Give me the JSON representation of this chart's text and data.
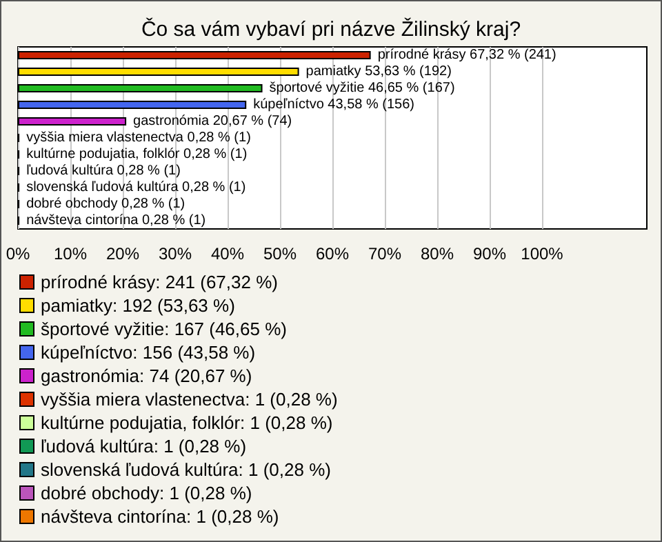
{
  "chart_data": {
    "type": "bar",
    "orientation": "horizontal",
    "stacked": true,
    "title": "Čo sa vám vybaví pri názve Žilinský kraj?",
    "categories": [
      null,
      null,
      null,
      null,
      null,
      null,
      null,
      null,
      null,
      null,
      null
    ],
    "xlim": [
      0,
      120
    ],
    "xticks": [
      {
        "value": 0,
        "label": "0%"
      },
      {
        "value": 10,
        "label": "10%"
      },
      {
        "value": 20,
        "label": "20%"
      },
      {
        "value": 30,
        "label": "30%"
      },
      {
        "value": 40,
        "label": "40%"
      },
      {
        "value": 50,
        "label": "50%"
      },
      {
        "value": 60,
        "label": "60%"
      },
      {
        "value": 70,
        "label": "70%"
      },
      {
        "value": 80,
        "label": "80%"
      },
      {
        "value": 90,
        "label": "90%"
      },
      {
        "value": 100,
        "label": "100%"
      }
    ],
    "tick_labels": "x",
    "grid": "x",
    "legend": "bottom left",
    "series": [
      {
        "name": "prírodné krásy: 241 (67,32 %)",
        "color": "#cc2200",
        "values": [
          67.32,
          null,
          null,
          null,
          null,
          null,
          null,
          null,
          null,
          null,
          null
        ],
        "value_labels": [
          "prírodné krásy 67,32 % (241)",
          null,
          null,
          null,
          null,
          null,
          null,
          null,
          null,
          null,
          null
        ]
      },
      {
        "name": "pamiatky: 192 (53,63 %)",
        "color": "#ffdd00",
        "values": [
          null,
          53.63,
          null,
          null,
          null,
          null,
          null,
          null,
          null,
          null,
          null
        ],
        "value_labels": [
          null,
          "pamiatky 53,63 % (192)",
          null,
          null,
          null,
          null,
          null,
          null,
          null,
          null,
          null
        ]
      },
      {
        "name": "športové vyžitie: 167 (46,65 %)",
        "color": "#22bb22",
        "values": [
          null,
          null,
          46.65,
          null,
          null,
          null,
          null,
          null,
          null,
          null,
          null
        ],
        "value_labels": [
          null,
          null,
          "športové vyžitie 46,65 % (167)",
          null,
          null,
          null,
          null,
          null,
          null,
          null,
          null
        ]
      },
      {
        "name": "kúpeľníctvo: 156 (43,58 %)",
        "color": "#4466ee",
        "values": [
          null,
          null,
          null,
          43.58,
          null,
          null,
          null,
          null,
          null,
          null,
          null
        ],
        "value_labels": [
          null,
          null,
          null,
          "kúpeľníctvo 43,58 % (156)",
          null,
          null,
          null,
          null,
          null,
          null,
          null
        ]
      },
      {
        "name": "gastronómia: 74 (20,67 %)",
        "color": "#cc22cc",
        "values": [
          null,
          null,
          null,
          null,
          20.67,
          null,
          null,
          null,
          null,
          null,
          null
        ],
        "value_labels": [
          null,
          null,
          null,
          null,
          "gastronómia 20,67 % (74)",
          null,
          null,
          null,
          null,
          null,
          null
        ]
      },
      {
        "name": "vyššia miera vlastenectva: 1 (0,28 %)",
        "color": "#dd3300",
        "values": [
          null,
          null,
          null,
          null,
          null,
          0.28,
          null,
          null,
          null,
          null,
          null
        ],
        "value_labels": [
          null,
          null,
          null,
          null,
          null,
          "vyššia miera vlastenectva 0,28 % (1)",
          null,
          null,
          null,
          null,
          null
        ]
      },
      {
        "name": "kultúrne podujatia, folklór: 1 (0,28 %)",
        "color": "#ccff99",
        "values": [
          null,
          null,
          null,
          null,
          null,
          null,
          0.28,
          null,
          null,
          null,
          null
        ],
        "value_labels": [
          null,
          null,
          null,
          null,
          null,
          null,
          "kultúrne podujatia, folklór 0,28 % (1)",
          null,
          null,
          null,
          null
        ]
      },
      {
        "name": "ľudová kultúra: 1 (0,28 %)",
        "color": "#119955",
        "values": [
          null,
          null,
          null,
          null,
          null,
          null,
          null,
          0.28,
          null,
          null,
          null
        ],
        "value_labels": [
          null,
          null,
          null,
          null,
          null,
          null,
          null,
          "ľudová kultúra 0,28 % (1)",
          null,
          null,
          null
        ]
      },
      {
        "name": "slovenská ľudová kultúra: 1 (0,28 %)",
        "color": "#227788",
        "values": [
          null,
          null,
          null,
          null,
          null,
          null,
          null,
          null,
          0.28,
          null,
          null
        ],
        "value_labels": [
          null,
          null,
          null,
          null,
          null,
          null,
          null,
          null,
          "slovenská ľudová kultúra 0,28 % (1)",
          null,
          null
        ]
      },
      {
        "name": "dobré obchody: 1 (0,28 %)",
        "color": "#bb55bb",
        "values": [
          null,
          null,
          null,
          null,
          null,
          null,
          null,
          null,
          null,
          0.28,
          null
        ],
        "value_labels": [
          null,
          null,
          null,
          null,
          null,
          null,
          null,
          null,
          null,
          "dobré obchody 0,28 % (1)",
          null
        ]
      },
      {
        "name": "návšteva cintorína: 1 (0,28 %)",
        "color": "#ee7700",
        "values": [
          null,
          null,
          null,
          null,
          null,
          null,
          null,
          null,
          null,
          null,
          0.28
        ],
        "value_labels": [
          null,
          null,
          null,
          null,
          null,
          null,
          null,
          null,
          null,
          null,
          "návšteva cintorína 0,28 % (1)"
        ]
      }
    ]
  }
}
